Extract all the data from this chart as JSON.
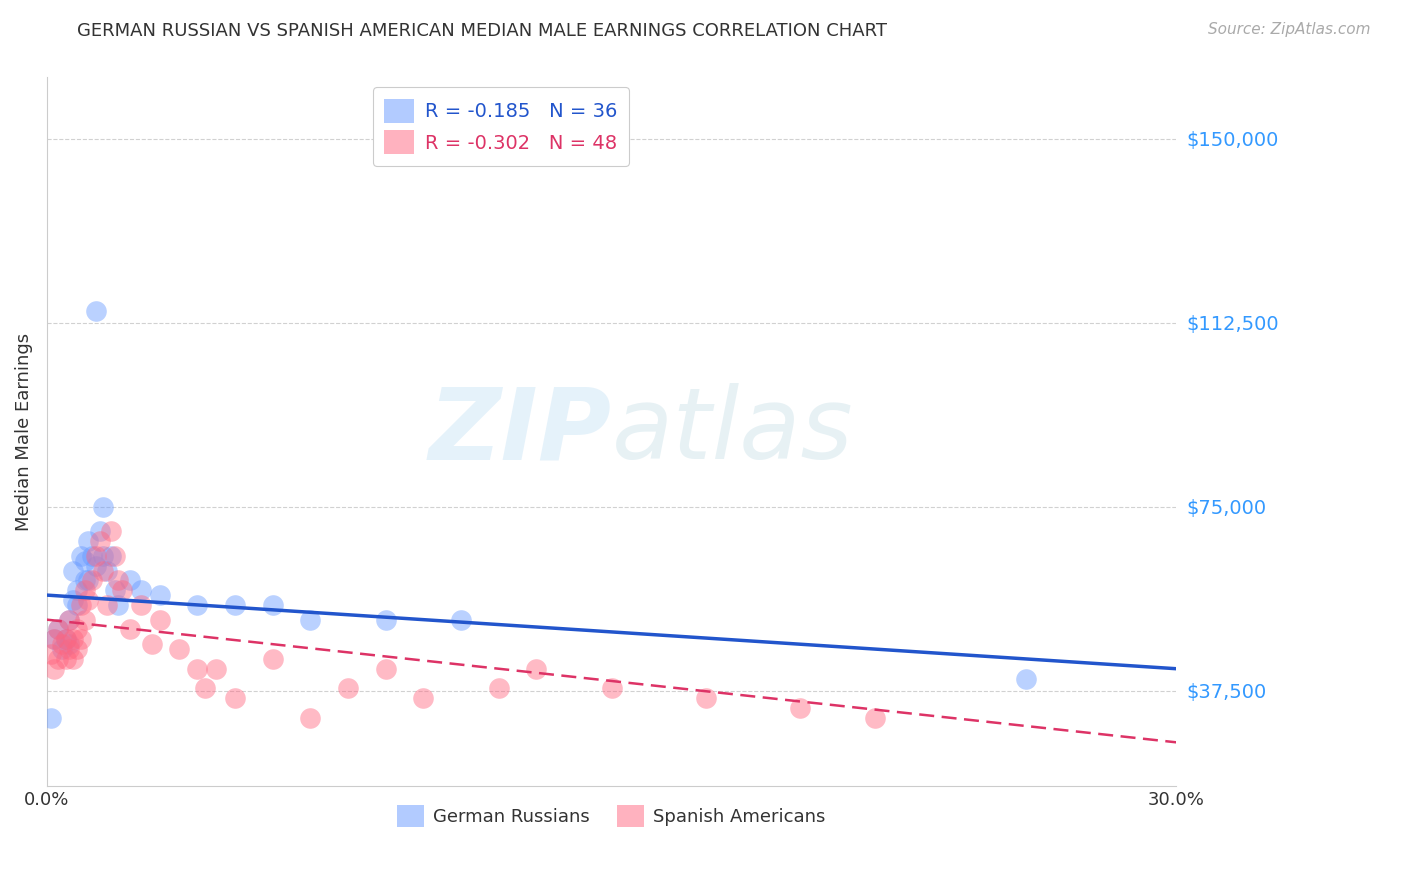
{
  "title": "GERMAN RUSSIAN VS SPANISH AMERICAN MEDIAN MALE EARNINGS CORRELATION CHART",
  "source": "Source: ZipAtlas.com",
  "ylabel": "Median Male Earnings",
  "xlim": [
    0.0,
    0.3
  ],
  "ylim": [
    18000,
    162500
  ],
  "yticks": [
    37500,
    75000,
    112500,
    150000
  ],
  "ytick_labels": [
    "$37,500",
    "$75,000",
    "$112,500",
    "$150,000"
  ],
  "xticks": [
    0.0,
    0.05,
    0.1,
    0.15,
    0.2,
    0.25,
    0.3
  ],
  "xtick_labels": [
    "0.0%",
    "",
    "",
    "",
    "",
    "",
    "30.0%"
  ],
  "watermark_zip": "ZIP",
  "watermark_atlas": "atlas",
  "blue_color": "#6699ff",
  "pink_color": "#ff6680",
  "blue_line_color": "#2255cc",
  "pink_line_color": "#dd3366",
  "R_blue": -0.185,
  "N_blue": 36,
  "R_pink": -0.302,
  "N_pink": 48,
  "legend_label_blue": "German Russians",
  "legend_label_pink": "Spanish Americans",
  "blue_scatter_x": [
    0.001,
    0.002,
    0.003,
    0.004,
    0.005,
    0.006,
    0.006,
    0.007,
    0.007,
    0.008,
    0.008,
    0.009,
    0.01,
    0.01,
    0.011,
    0.011,
    0.012,
    0.013,
    0.013,
    0.014,
    0.015,
    0.016,
    0.017,
    0.018,
    0.019,
    0.022,
    0.025,
    0.03,
    0.04,
    0.05,
    0.06,
    0.07,
    0.09,
    0.11,
    0.015,
    0.26
  ],
  "blue_scatter_y": [
    32000,
    48000,
    50000,
    46000,
    48000,
    52000,
    47000,
    56000,
    62000,
    58000,
    55000,
    65000,
    64000,
    60000,
    60000,
    68000,
    65000,
    63000,
    115000,
    70000,
    65000,
    62000,
    65000,
    58000,
    55000,
    60000,
    58000,
    57000,
    55000,
    55000,
    55000,
    52000,
    52000,
    52000,
    75000,
    40000
  ],
  "pink_scatter_x": [
    0.001,
    0.002,
    0.002,
    0.003,
    0.003,
    0.004,
    0.005,
    0.005,
    0.006,
    0.006,
    0.007,
    0.007,
    0.008,
    0.008,
    0.009,
    0.009,
    0.01,
    0.01,
    0.011,
    0.012,
    0.013,
    0.014,
    0.015,
    0.016,
    0.017,
    0.018,
    0.019,
    0.02,
    0.022,
    0.025,
    0.028,
    0.03,
    0.035,
    0.04,
    0.042,
    0.045,
    0.05,
    0.06,
    0.07,
    0.08,
    0.09,
    0.1,
    0.12,
    0.13,
    0.15,
    0.175,
    0.2,
    0.22
  ],
  "pink_scatter_y": [
    45000,
    42000,
    48000,
    44000,
    50000,
    47000,
    44000,
    48000,
    46000,
    52000,
    44000,
    48000,
    46000,
    50000,
    48000,
    55000,
    52000,
    58000,
    56000,
    60000,
    65000,
    68000,
    62000,
    55000,
    70000,
    65000,
    60000,
    58000,
    50000,
    55000,
    47000,
    52000,
    46000,
    42000,
    38000,
    42000,
    36000,
    44000,
    32000,
    38000,
    42000,
    36000,
    38000,
    42000,
    38000,
    36000,
    34000,
    32000
  ],
  "blue_line_x": [
    0.0,
    0.3
  ],
  "blue_line_y": [
    57000,
    42000
  ],
  "pink_line_x": [
    0.0,
    0.3
  ],
  "pink_line_y": [
    52000,
    27000
  ],
  "grid_color": "#cccccc",
  "bg_color": "#ffffff"
}
